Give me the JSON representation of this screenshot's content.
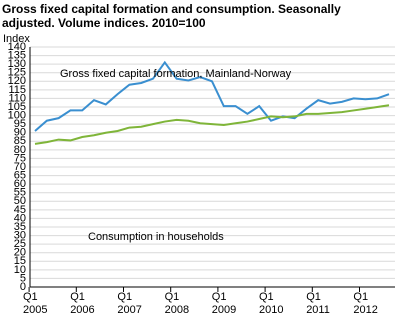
{
  "chart_data": {
    "type": "line",
    "title": "Gross fixed capital formation and consumption. Seasonally adjusted. Volume indices. 2010=100",
    "y_label": "Index",
    "categories": [
      "Q1\n2005",
      null,
      null,
      null,
      "Q1\n2006",
      null,
      null,
      null,
      "Q1\n2007",
      null,
      null,
      null,
      "Q1\n2008",
      null,
      null,
      null,
      "Q1\n2009",
      null,
      null,
      null,
      "Q1\n2010",
      null,
      null,
      null,
      "Q1\n2011",
      null,
      null,
      null,
      "Q1\n2012",
      null,
      null
    ],
    "series": [
      {
        "name": "Gross fixed capital formation, Mainland-Norway",
        "color": "#3a8fd0",
        "values": [
          91,
          97,
          98.5,
          103,
          103,
          109,
          106.5,
          112.5,
          118,
          119,
          121.5,
          131,
          121.5,
          120.5,
          122.5,
          120,
          105.5,
          105.5,
          101,
          105.5,
          97,
          99.5,
          98.5,
          104,
          109,
          107,
          108,
          110,
          109.5,
          110,
          112.5
        ]
      },
      {
        "name": "Consumption in households",
        "color": "#7fb539",
        "values": [
          83.5,
          84.5,
          86,
          85.5,
          87.5,
          88.5,
          90,
          91,
          93,
          93.5,
          95,
          96.5,
          97.5,
          97,
          95.5,
          95,
          94.5,
          95.5,
          96.5,
          98,
          99.5,
          99,
          99.5,
          101,
          101,
          101.5,
          102,
          103,
          104,
          105,
          106
        ]
      }
    ],
    "ylim": [
      0,
      140
    ],
    "yticks": [
      0,
      5,
      10,
      15,
      20,
      25,
      30,
      35,
      40,
      45,
      50,
      55,
      60,
      65,
      70,
      75,
      80,
      85,
      90,
      95,
      100,
      105,
      110,
      115,
      120,
      125,
      130,
      135,
      140
    ],
    "grid": true
  }
}
